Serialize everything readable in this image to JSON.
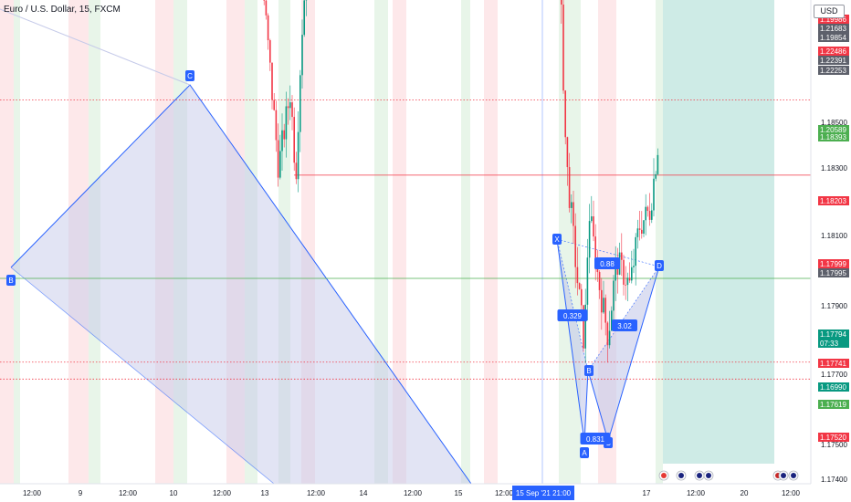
{
  "header": {
    "title": "Euro / U.S. Dollar, 15, FXCM",
    "currency": "USD"
  },
  "chart_data": {
    "type": "candlestick",
    "symbol": "Euro / U.S. Dollar",
    "interval": "15",
    "source": "FXCM",
    "x_tick_labels": [
      "12:00",
      "9",
      "12:00",
      "10",
      "12:00",
      "13",
      "12:00",
      "14",
      "12:00",
      "15",
      "12:00",
      "12:00",
      "17",
      "12:00",
      "20",
      "12:00"
    ],
    "crosshair_time_label": "15 Sep '21  21:00",
    "y_tick_labels": [
      "1.18500",
      "1.18300",
      "1.18100",
      "1.17900",
      "1.17700",
      "1.17500",
      "1.17400"
    ],
    "price_scale_tags": [
      {
        "value": "1.19986",
        "color": "#f23645"
      },
      {
        "value": "1.21683",
        "color": "#5d606b"
      },
      {
        "value": "1.19854",
        "color": "#5d606b"
      },
      {
        "value": "1.22486",
        "color": "#f23645"
      },
      {
        "value": "1.22391",
        "color": "#5d606b"
      },
      {
        "value": "1.22253",
        "color": "#5d606b"
      },
      {
        "value": "1.20589",
        "color": "#4caf50"
      },
      {
        "value": "1.18393",
        "color": "#4caf50"
      },
      {
        "value": "1.18203",
        "color": "#f23645"
      },
      {
        "value": "1.17999",
        "color": "#f23645"
      },
      {
        "value": "1.17995",
        "color": "#5d606b"
      },
      {
        "value": "1.17794",
        "color": "#089981"
      },
      {
        "value": "07:33",
        "color": "#089981"
      },
      {
        "value": "1.17741",
        "color": "#f23645"
      },
      {
        "value": "1.16990",
        "color": "#089981"
      },
      {
        "value": "1.17619",
        "color": "#4caf50"
      },
      {
        "value": "1.17520",
        "color": "#f23645"
      }
    ],
    "horizontal_levels": [
      {
        "price": 1.18393,
        "style": "solid",
        "color": "#4caf50"
      },
      {
        "price": 1.18203,
        "style": "dotted",
        "color": "#4caf50"
      },
      {
        "price": 1.17999,
        "style": "dotted",
        "color": "#311b92"
      },
      {
        "price": 1.17995,
        "style": "solid",
        "color": "#9598a1"
      },
      {
        "price": 1.1783,
        "style": "dotted",
        "color": "#f23645"
      },
      {
        "price": 1.17741,
        "style": "solid",
        "color": "#f23645"
      },
      {
        "price": 1.17619,
        "style": "solid",
        "color": "#4caf50"
      },
      {
        "price": 1.1752,
        "style": "dotted",
        "color": "#f23645"
      },
      {
        "price": 1.175,
        "style": "dotted",
        "color": "#f23645"
      }
    ],
    "harmonic_pattern": {
      "points": [
        "B",
        "C",
        "X",
        "A",
        "B",
        "C",
        "D"
      ],
      "ratios": [
        "0.88",
        "0.329",
        "3.02",
        "0.831"
      ]
    },
    "position": {
      "entry": 1.17999,
      "stop": 1.18203,
      "target": 1.174
    },
    "price_close": 1.17794,
    "colors": {
      "up": "#089981",
      "down": "#f23645",
      "pattern": "#2962ff",
      "pattern_fill": "#c5cae9"
    }
  }
}
